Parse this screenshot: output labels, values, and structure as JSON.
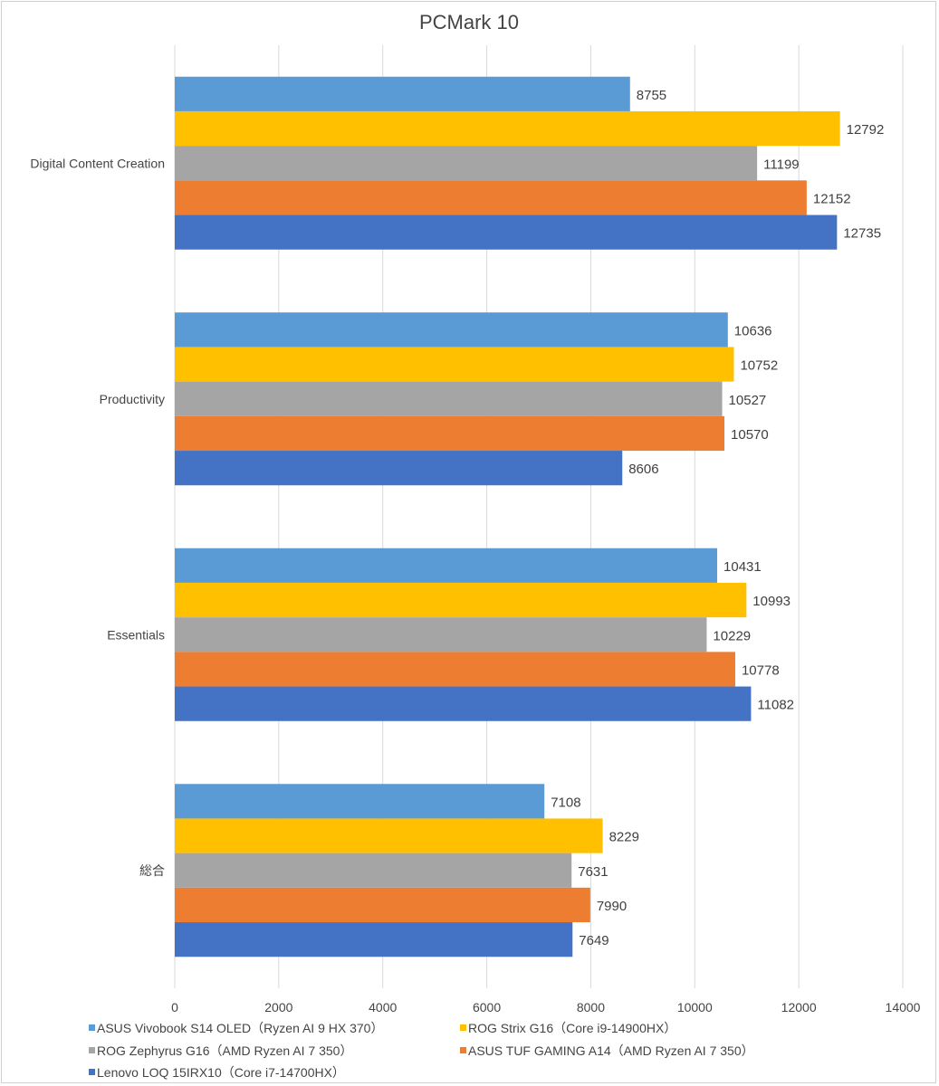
{
  "chart_data": {
    "type": "bar",
    "orientation": "horizontal",
    "title": "PCMark 10",
    "categories": [
      "Digital Content Creation",
      "Productivity",
      "Essentials",
      "総合"
    ],
    "xlim": [
      0,
      14000
    ],
    "xticks": [
      0,
      2000,
      4000,
      6000,
      8000,
      10000,
      12000,
      14000
    ],
    "grid": true,
    "legend_position": "bottom",
    "series": [
      {
        "name": "ASUS Vivobook S14 OLED（Ryzen AI 9 HX 370）",
        "color": "#5b9bd5",
        "values": [
          8755,
          10636,
          10431,
          7108
        ]
      },
      {
        "name": "ROG Strix G16（Core i9-14900HX）",
        "color": "#ffc000",
        "values": [
          12792,
          10752,
          10993,
          8229
        ]
      },
      {
        "name": "ROG Zephyrus G16（AMD Ryzen AI 7 350）",
        "color": "#a5a5a5",
        "values": [
          11199,
          10527,
          10229,
          7631
        ]
      },
      {
        "name": "ASUS TUF GAMING A14（AMD Ryzen AI 7 350）",
        "color": "#ed7d31",
        "values": [
          12152,
          10570,
          10778,
          7990
        ]
      },
      {
        "name": "Lenovo LOQ 15IRX10（Core i7-14700HX）",
        "color": "#4472c4",
        "values": [
          12735,
          8606,
          11082,
          7649
        ]
      }
    ]
  }
}
